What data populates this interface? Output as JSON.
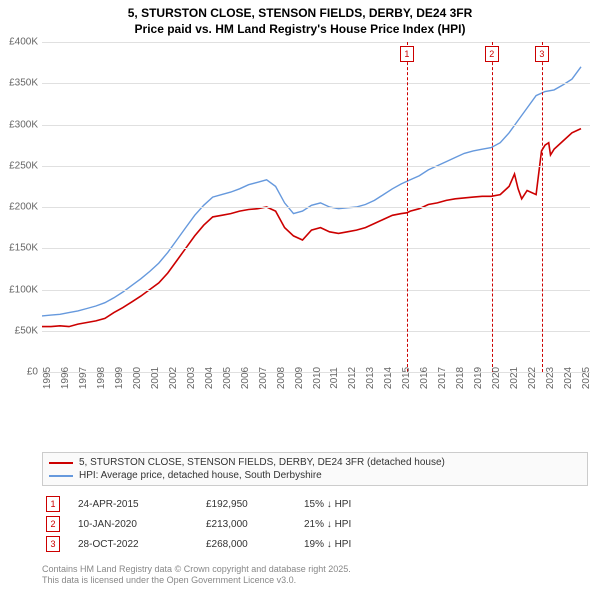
{
  "title_line1": "5, STURSTON CLOSE, STENSON FIELDS, DERBY, DE24 3FR",
  "title_line2": "Price paid vs. HM Land Registry's House Price Index (HPI)",
  "chart": {
    "type": "line",
    "background_color": "#ffffff",
    "grid_color": "#e0e0e0",
    "axis_text_color": "#666666",
    "ylim": [
      0,
      400000
    ],
    "ytick_step": 50000,
    "yticks": [
      "£0",
      "£50K",
      "£100K",
      "£150K",
      "£200K",
      "£250K",
      "£300K",
      "£350K",
      "£400K"
    ],
    "xrange": [
      1995,
      2025.5
    ],
    "xticks": [
      1995,
      1996,
      1997,
      1998,
      1999,
      2000,
      2001,
      2002,
      2003,
      2004,
      2005,
      2006,
      2007,
      2008,
      2009,
      2010,
      2011,
      2012,
      2013,
      2014,
      2015,
      2016,
      2017,
      2018,
      2019,
      2020,
      2021,
      2022,
      2023,
      2024,
      2025
    ],
    "series": [
      {
        "name": "price_paid",
        "label": "5, STURSTON CLOSE, STENSON FIELDS, DERBY, DE24 3FR (detached house)",
        "color": "#cc0000",
        "line_width": 1.6,
        "data": [
          [
            1995,
            55000
          ],
          [
            1995.5,
            55000
          ],
          [
            1996,
            56000
          ],
          [
            1996.5,
            55000
          ],
          [
            1997,
            58000
          ],
          [
            1997.5,
            60000
          ],
          [
            1998,
            62000
          ],
          [
            1998.5,
            65000
          ],
          [
            1999,
            72000
          ],
          [
            1999.5,
            78000
          ],
          [
            2000,
            85000
          ],
          [
            2000.5,
            92000
          ],
          [
            2001,
            100000
          ],
          [
            2001.5,
            108000
          ],
          [
            2002,
            120000
          ],
          [
            2002.5,
            135000
          ],
          [
            2003,
            150000
          ],
          [
            2003.5,
            165000
          ],
          [
            2004,
            178000
          ],
          [
            2004.5,
            188000
          ],
          [
            2005,
            190000
          ],
          [
            2005.5,
            192000
          ],
          [
            2006,
            195000
          ],
          [
            2006.5,
            197000
          ],
          [
            2007,
            198000
          ],
          [
            2007.5,
            200000
          ],
          [
            2008,
            195000
          ],
          [
            2008.5,
            175000
          ],
          [
            2009,
            165000
          ],
          [
            2009.5,
            160000
          ],
          [
            2010,
            172000
          ],
          [
            2010.5,
            175000
          ],
          [
            2011,
            170000
          ],
          [
            2011.5,
            168000
          ],
          [
            2012,
            170000
          ],
          [
            2012.5,
            172000
          ],
          [
            2013,
            175000
          ],
          [
            2013.5,
            180000
          ],
          [
            2014,
            185000
          ],
          [
            2014.5,
            190000
          ],
          [
            2015,
            192000
          ],
          [
            2015.3,
            192950
          ],
          [
            2015.5,
            195000
          ],
          [
            2016,
            198000
          ],
          [
            2016.5,
            203000
          ],
          [
            2017,
            205000
          ],
          [
            2017.5,
            208000
          ],
          [
            2018,
            210000
          ],
          [
            2018.5,
            211000
          ],
          [
            2019,
            212000
          ],
          [
            2019.5,
            213000
          ],
          [
            2020,
            213000
          ],
          [
            2020.5,
            215000
          ],
          [
            2021,
            225000
          ],
          [
            2021.3,
            240000
          ],
          [
            2021.5,
            222000
          ],
          [
            2021.7,
            210000
          ],
          [
            2022,
            220000
          ],
          [
            2022.5,
            215000
          ],
          [
            2022.8,
            268000
          ],
          [
            2023,
            275000
          ],
          [
            2023.2,
            278000
          ],
          [
            2023.3,
            263000
          ],
          [
            2023.5,
            270000
          ],
          [
            2024,
            280000
          ],
          [
            2024.5,
            290000
          ],
          [
            2025,
            295000
          ]
        ]
      },
      {
        "name": "hpi",
        "label": "HPI: Average price, detached house, South Derbyshire",
        "color": "#6699dd",
        "line_width": 1.4,
        "data": [
          [
            1995,
            68000
          ],
          [
            1995.5,
            69000
          ],
          [
            1996,
            70000
          ],
          [
            1996.5,
            72000
          ],
          [
            1997,
            74000
          ],
          [
            1997.5,
            77000
          ],
          [
            1998,
            80000
          ],
          [
            1998.5,
            84000
          ],
          [
            1999,
            90000
          ],
          [
            1999.5,
            97000
          ],
          [
            2000,
            105000
          ],
          [
            2000.5,
            113000
          ],
          [
            2001,
            122000
          ],
          [
            2001.5,
            132000
          ],
          [
            2002,
            145000
          ],
          [
            2002.5,
            160000
          ],
          [
            2003,
            175000
          ],
          [
            2003.5,
            190000
          ],
          [
            2004,
            202000
          ],
          [
            2004.5,
            212000
          ],
          [
            2005,
            215000
          ],
          [
            2005.5,
            218000
          ],
          [
            2006,
            222000
          ],
          [
            2006.5,
            227000
          ],
          [
            2007,
            230000
          ],
          [
            2007.5,
            233000
          ],
          [
            2008,
            225000
          ],
          [
            2008.5,
            205000
          ],
          [
            2009,
            192000
          ],
          [
            2009.5,
            195000
          ],
          [
            2010,
            202000
          ],
          [
            2010.5,
            205000
          ],
          [
            2011,
            200000
          ],
          [
            2011.5,
            198000
          ],
          [
            2012,
            199000
          ],
          [
            2012.5,
            200000
          ],
          [
            2013,
            203000
          ],
          [
            2013.5,
            208000
          ],
          [
            2014,
            215000
          ],
          [
            2014.5,
            222000
          ],
          [
            2015,
            228000
          ],
          [
            2015.5,
            233000
          ],
          [
            2016,
            238000
          ],
          [
            2016.5,
            245000
          ],
          [
            2017,
            250000
          ],
          [
            2017.5,
            255000
          ],
          [
            2018,
            260000
          ],
          [
            2018.5,
            265000
          ],
          [
            2019,
            268000
          ],
          [
            2019.5,
            270000
          ],
          [
            2020,
            272000
          ],
          [
            2020.5,
            278000
          ],
          [
            2021,
            290000
          ],
          [
            2021.5,
            305000
          ],
          [
            2022,
            320000
          ],
          [
            2022.5,
            335000
          ],
          [
            2023,
            340000
          ],
          [
            2023.5,
            342000
          ],
          [
            2024,
            348000
          ],
          [
            2024.5,
            355000
          ],
          [
            2025,
            370000
          ]
        ]
      }
    ],
    "events": [
      {
        "n": "1",
        "x": 2015.31,
        "color": "#cc0000"
      },
      {
        "n": "2",
        "x": 2020.03,
        "color": "#cc0000"
      },
      {
        "n": "3",
        "x": 2022.82,
        "color": "#cc0000"
      }
    ]
  },
  "legend": {
    "rows": [
      {
        "color": "#cc0000",
        "label": "5, STURSTON CLOSE, STENSON FIELDS, DERBY, DE24 3FR (detached house)"
      },
      {
        "color": "#6699dd",
        "label": "HPI: Average price, detached house, South Derbyshire"
      }
    ]
  },
  "event_rows": [
    {
      "n": "1",
      "color": "#cc0000",
      "date": "24-APR-2015",
      "price": "£192,950",
      "delta": "15% ↓ HPI"
    },
    {
      "n": "2",
      "color": "#cc0000",
      "date": "10-JAN-2020",
      "price": "£213,000",
      "delta": "21% ↓ HPI"
    },
    {
      "n": "3",
      "color": "#cc0000",
      "date": "28-OCT-2022",
      "price": "£268,000",
      "delta": "19% ↓ HPI"
    }
  ],
  "footnote_line1": "Contains HM Land Registry data © Crown copyright and database right 2025.",
  "footnote_line2": "This data is licensed under the Open Government Licence v3.0."
}
